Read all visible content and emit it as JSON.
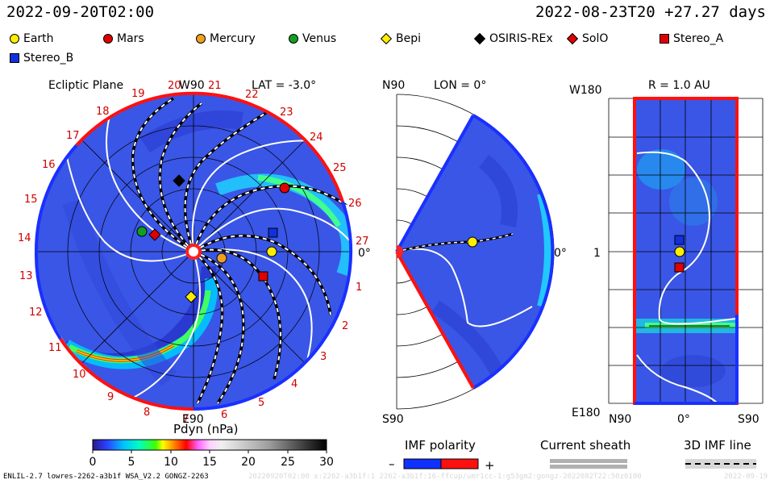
{
  "header": {
    "left_time": "2022-09-20T02:00",
    "right_time": "2022-08-23T20 +27.27 days"
  },
  "legend": [
    {
      "name": "Earth",
      "shape": "circle",
      "color": "#ffee00"
    },
    {
      "name": "Mars",
      "shape": "circle",
      "color": "#e00000"
    },
    {
      "name": "Mercury",
      "shape": "circle",
      "color": "#f0a020"
    },
    {
      "name": "Venus",
      "shape": "circle",
      "color": "#10a020"
    },
    {
      "name": "Bepi",
      "shape": "diamond",
      "color": "#ffee00"
    },
    {
      "name": "OSIRIS-REx",
      "shape": "diamond",
      "color": "#000000"
    },
    {
      "name": "SolO",
      "shape": "diamond",
      "color": "#e00000"
    },
    {
      "name": "Stereo_A",
      "shape": "square",
      "color": "#e00000"
    },
    {
      "name": "Stereo_B",
      "shape": "square",
      "color": "#1030e0"
    }
  ],
  "ecliptic": {
    "title": "Ecliptic Plane",
    "top_label": "W90",
    "lat_label": "LAT = -3.0°",
    "right_label": "0°",
    "bottom_label": "E90",
    "sector_numbers": [
      "1",
      "2",
      "3",
      "4",
      "5",
      "6",
      "7",
      "8",
      "9",
      "10",
      "11",
      "12",
      "13",
      "14",
      "15",
      "16",
      "17",
      "18",
      "19",
      "20",
      "21",
      "22",
      "23",
      "24",
      "25",
      "26",
      "27"
    ]
  },
  "meridional": {
    "top_label": "N90",
    "lon_label": "LON = 0°",
    "right_label": "0°",
    "bottom_label": "S90"
  },
  "sphere": {
    "top_left": "W180",
    "r_label": "R = 1.0 AU",
    "left_mid": "1",
    "bottom_left": "E180",
    "x_labels": [
      "N90",
      "0°",
      "S90"
    ]
  },
  "colorbar": {
    "label": "Pdyn (nPa)",
    "ticks": [
      "0",
      "5",
      "10",
      "15",
      "20",
      "25",
      "30"
    ]
  },
  "imf": {
    "title": "IMF polarity",
    "minus": "–",
    "plus": "+"
  },
  "sheath": {
    "title": "Current sheath"
  },
  "imfline": {
    "title": "3D IMF line"
  },
  "footer": {
    "left": "ENLIL-2.7 lowres-2262-a3b1f WSA_V2.2 GONGZ-2263",
    "mid": "20220920T02:00 x:2262-a3b1f:1 2262-a3b1f:16-ffcup/umr1cc-1:g53gm2:gongz-2022082T22:50z0100",
    "right": "2022-09-19"
  }
}
